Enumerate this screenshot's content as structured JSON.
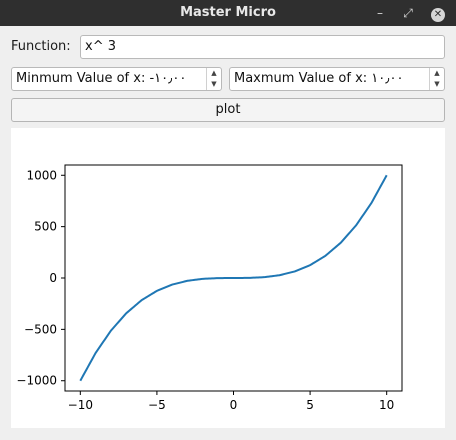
{
  "window": {
    "title": "Master Micro"
  },
  "function_row": {
    "label": "Function:",
    "value": "x^ 3"
  },
  "min_spin": {
    "text": "Minmum Value of x: -۱۰٫۰۰"
  },
  "max_spin": {
    "text": "Maxmum Value of x: ۱۰٫۰۰"
  },
  "plot_button": {
    "label": "plot"
  },
  "chart_data": {
    "type": "line",
    "title": "",
    "xlabel": "",
    "ylabel": "",
    "xlim": [
      -11,
      11
    ],
    "ylim": [
      -1100,
      1100
    ],
    "x_ticks": [
      -10,
      -5,
      0,
      5,
      10
    ],
    "y_ticks": [
      -1000,
      -500,
      0,
      500,
      1000
    ],
    "x_tick_labels": [
      "−10",
      "−5",
      "0",
      "5",
      "10"
    ],
    "y_tick_labels": [
      "−1000",
      "−500",
      "0",
      "500",
      "1000"
    ],
    "grid": false,
    "series": [
      {
        "color": "#1f77b4",
        "x": [
          -10,
          -9,
          -8,
          -7,
          -6,
          -5,
          -4,
          -3,
          -2,
          -1,
          0,
          1,
          2,
          3,
          4,
          5,
          6,
          7,
          8,
          9,
          10
        ],
        "y": [
          -1000,
          -729,
          -512,
          -343,
          -216,
          -125,
          -64,
          -27,
          -8,
          -1,
          0,
          1,
          8,
          27,
          64,
          125,
          216,
          343,
          512,
          729,
          1000
        ]
      }
    ]
  }
}
